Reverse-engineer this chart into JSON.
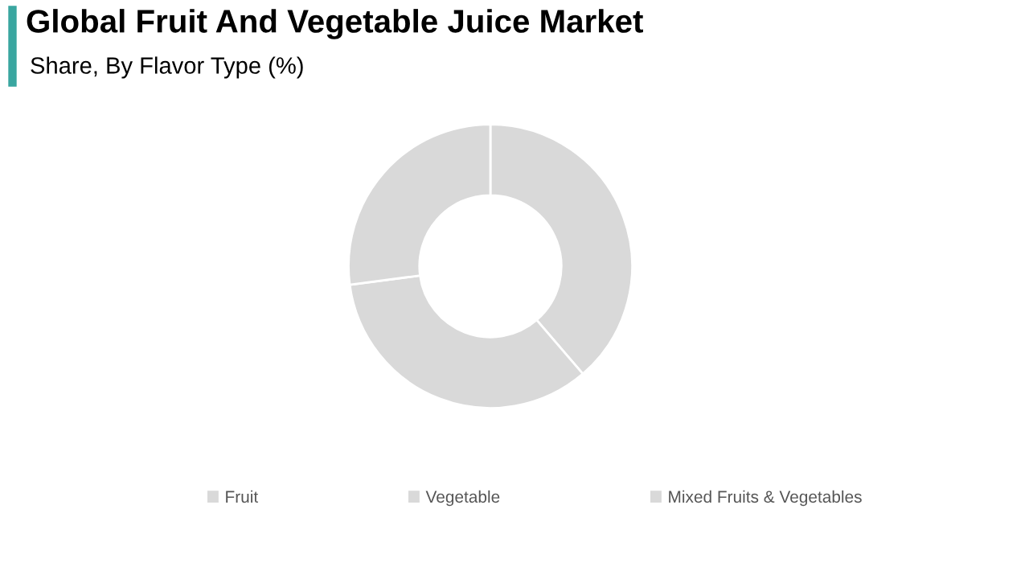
{
  "chart_data": {
    "type": "donut",
    "title": "Global Fruit And Vegetable Juice Market",
    "subtitle": "Share, By Flavor Type (%)",
    "categories": [
      "Fruit",
      "Vegetable",
      "Mixed Fruits & Vegetables"
    ],
    "values": [
      38.7,
      34.2,
      27.1
    ],
    "colors": [
      "#d9d9d9",
      "#d9d9d9",
      "#d9d9d9"
    ],
    "legend": "bottom"
  }
}
